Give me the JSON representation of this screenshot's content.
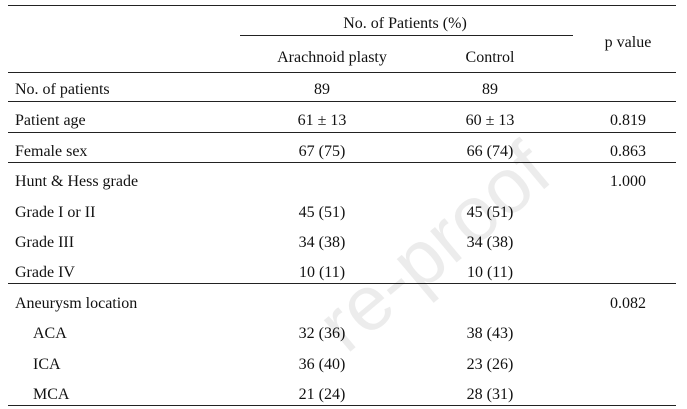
{
  "table": {
    "header": {
      "group_label": "No. of Patients (%)",
      "col_arachnoid": "Arachnoid plasty",
      "col_control": "Control",
      "col_p": "p value"
    },
    "rows": [
      {
        "label": "No. of patients",
        "arachnoid": "89",
        "control": "89",
        "p": ""
      },
      {
        "label": "Patient age",
        "arachnoid": "61 ± 13",
        "control": "60 ± 13",
        "p": "0.819"
      },
      {
        "label": "Female sex",
        "arachnoid": "67 (75)",
        "control": "66 (74)",
        "p": "0.863"
      },
      {
        "label": "Hunt & Hess grade",
        "arachnoid": "",
        "control": "",
        "p": "1.000"
      },
      {
        "label": "Grade I or II",
        "arachnoid": "45 (51)",
        "control": "45 (51)",
        "p": ""
      },
      {
        "label": "Grade III",
        "arachnoid": "34 (38)",
        "control": "34 (38)",
        "p": ""
      },
      {
        "label": "Grade IV",
        "arachnoid": "10 (11)",
        "control": "10 (11)",
        "p": ""
      },
      {
        "label": "Aneurysm location",
        "arachnoid": "",
        "control": "",
        "p": "0.082"
      },
      {
        "label": "ACA",
        "arachnoid": "32 (36)",
        "control": "38 (43)",
        "p": ""
      },
      {
        "label": "ICA",
        "arachnoid": "36 (40)",
        "control": "23 (26)",
        "p": ""
      },
      {
        "label": "MCA",
        "arachnoid": "21 (24)",
        "control": "28 (31)",
        "p": ""
      }
    ]
  },
  "watermark": "re-proof"
}
